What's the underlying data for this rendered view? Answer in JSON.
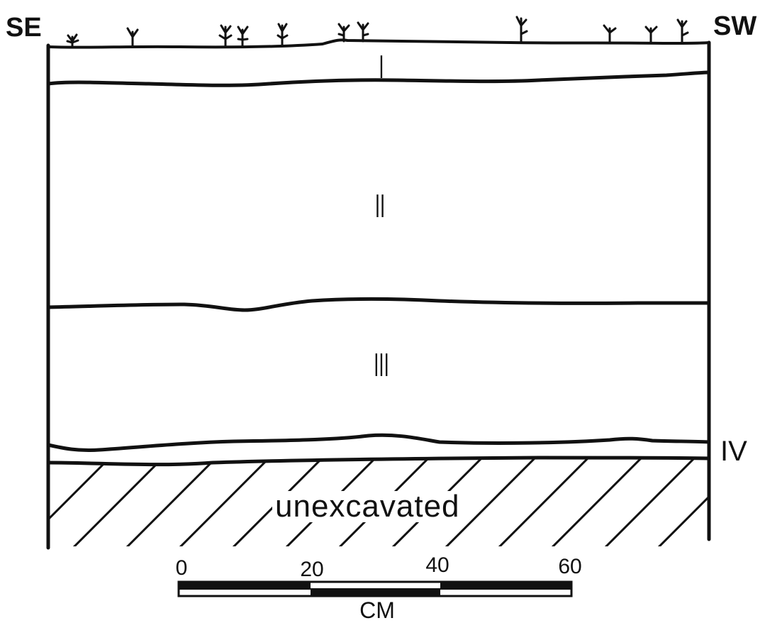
{
  "profile": {
    "left_label": "SE",
    "right_label": "SW",
    "layers": [
      {
        "id": "layer-1",
        "label": "I"
      },
      {
        "id": "layer-2",
        "label": "II"
      },
      {
        "id": "layer-3",
        "label": "III"
      },
      {
        "id": "layer-4",
        "label": "IV"
      }
    ],
    "unexcavated_label": "unexcavated"
  },
  "scale_bar": {
    "ticks": [
      "0",
      "20",
      "40",
      "60"
    ],
    "unit": "CM"
  },
  "colors": {
    "ink": "#111111",
    "paper": "#ffffff"
  }
}
